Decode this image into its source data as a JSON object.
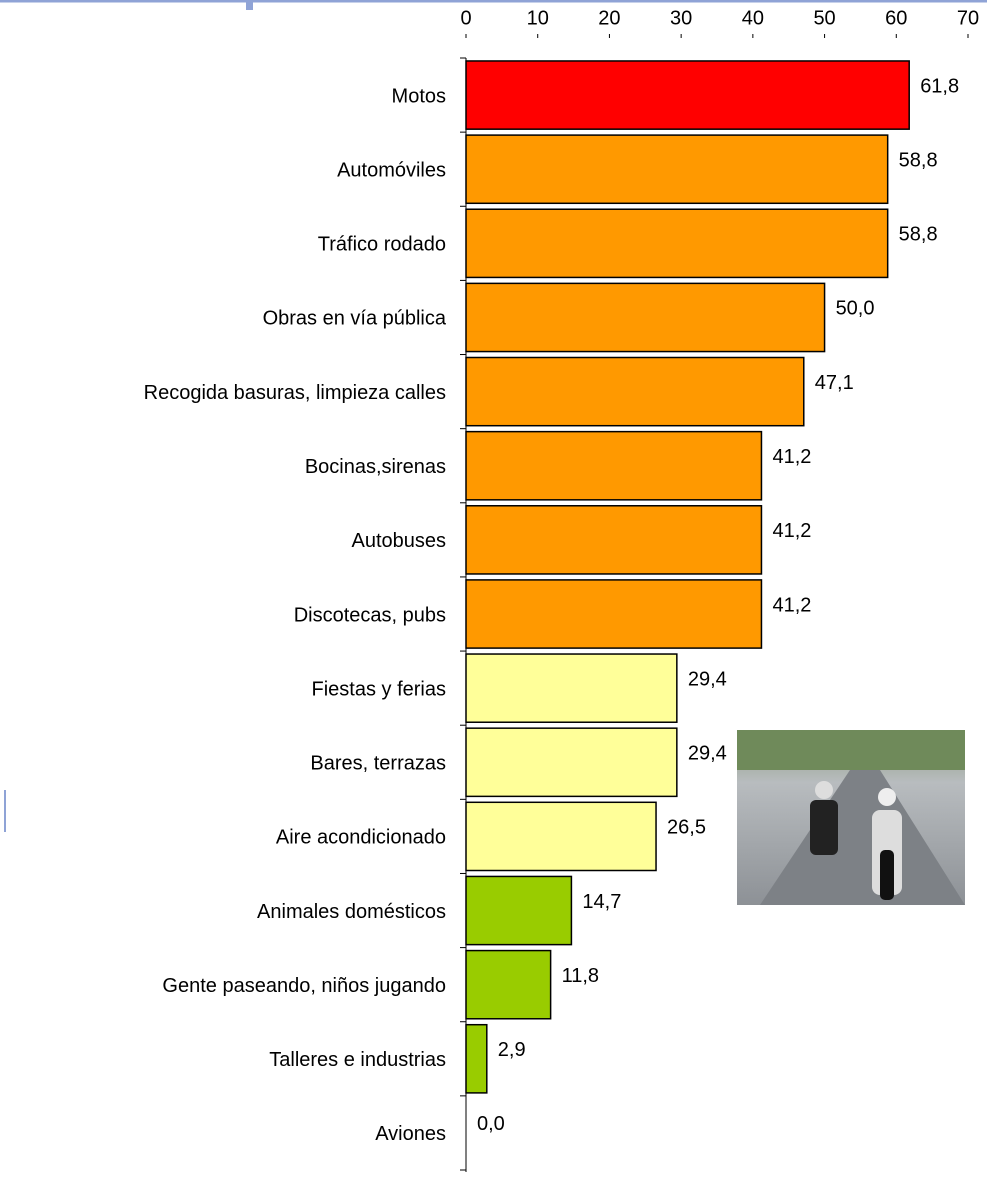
{
  "chart_data": {
    "type": "bar",
    "orientation": "horizontal",
    "categories": [
      "Motos",
      "Automóviles",
      "Tráfico rodado",
      "Obras en vía pública",
      "Recogida basuras, limpieza calles",
      "Bocinas,sirenas",
      "Autobuses",
      "Discotecas, pubs",
      "Fiestas y ferias",
      "Bares, terrazas",
      "Aire acondicionado",
      "Animales domésticos",
      "Gente paseando, niños jugando",
      "Talleres e industrias",
      "Aviones"
    ],
    "values": [
      61.8,
      58.8,
      58.8,
      50.0,
      47.1,
      41.2,
      41.2,
      41.2,
      29.4,
      29.4,
      26.5,
      14.7,
      11.8,
      2.9,
      0.0
    ],
    "value_labels": [
      "61,8",
      "58,8",
      "58,8",
      "50,0",
      "47,1",
      "41,2",
      "41,2",
      "41,2",
      "29,4",
      "29,4",
      "26,5",
      "14,7",
      "11,8",
      "2,9",
      "0,0"
    ],
    "colors": [
      "#ff0000",
      "#ff9900",
      "#ff9900",
      "#ff9900",
      "#ff9900",
      "#ff9900",
      "#ff9900",
      "#ff9900",
      "#ffff99",
      "#ffff99",
      "#ffff99",
      "#99cc00",
      "#99cc00",
      "#99cc00",
      "#99cc00"
    ],
    "xlim": [
      0,
      70
    ],
    "xticks": [
      0,
      10,
      20,
      30,
      40,
      50,
      60,
      70
    ],
    "grid": false
  }
}
